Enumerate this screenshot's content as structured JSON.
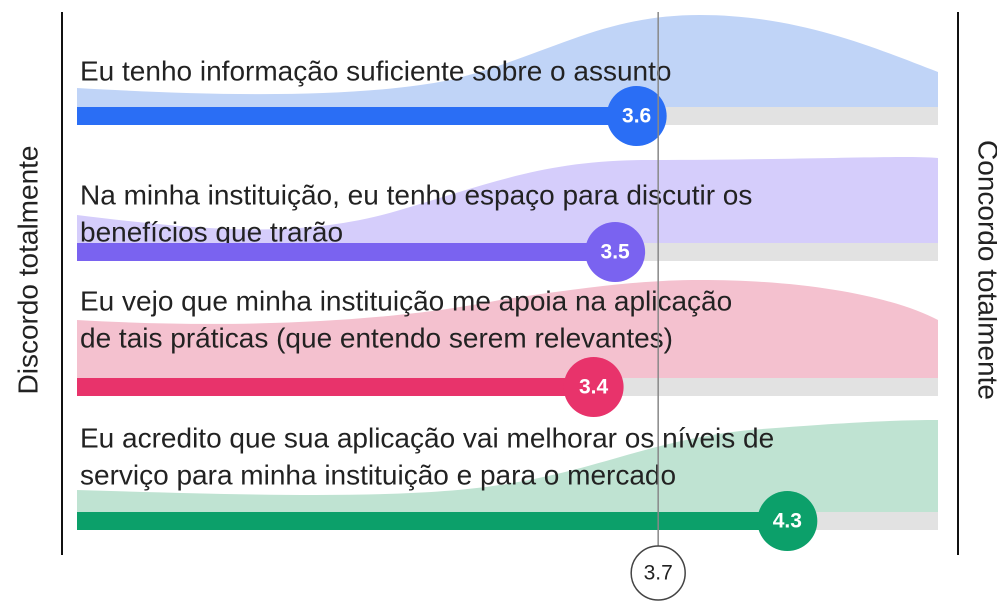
{
  "chart_data": {
    "type": "hbar",
    "categories": [
      [
        "Eu tenho informação suficiente sobre o assunto"
      ],
      [
        "Na minha instituição, eu tenho espaço para discutir os",
        "benefícios que trarão"
      ],
      [
        "Eu vejo que minha instituição me apoia na aplicação",
        "de tais práticas (que entendo serem relevantes)"
      ],
      [
        "Eu acredito que sua aplicação vai melhorar os níveis de",
        "serviço para minha instituição e para o mercado"
      ]
    ],
    "values": [
      3.6,
      3.5,
      3.4,
      4.3
    ],
    "colors": [
      "#2a6ef5",
      "#7a63f0",
      "#e8336b",
      "#0ca06a"
    ],
    "xlim": [
      1,
      5
    ],
    "reference": 3.7,
    "xlabel_left": "Discordo totalmente",
    "xlabel_right": "Concordo totalmente"
  }
}
